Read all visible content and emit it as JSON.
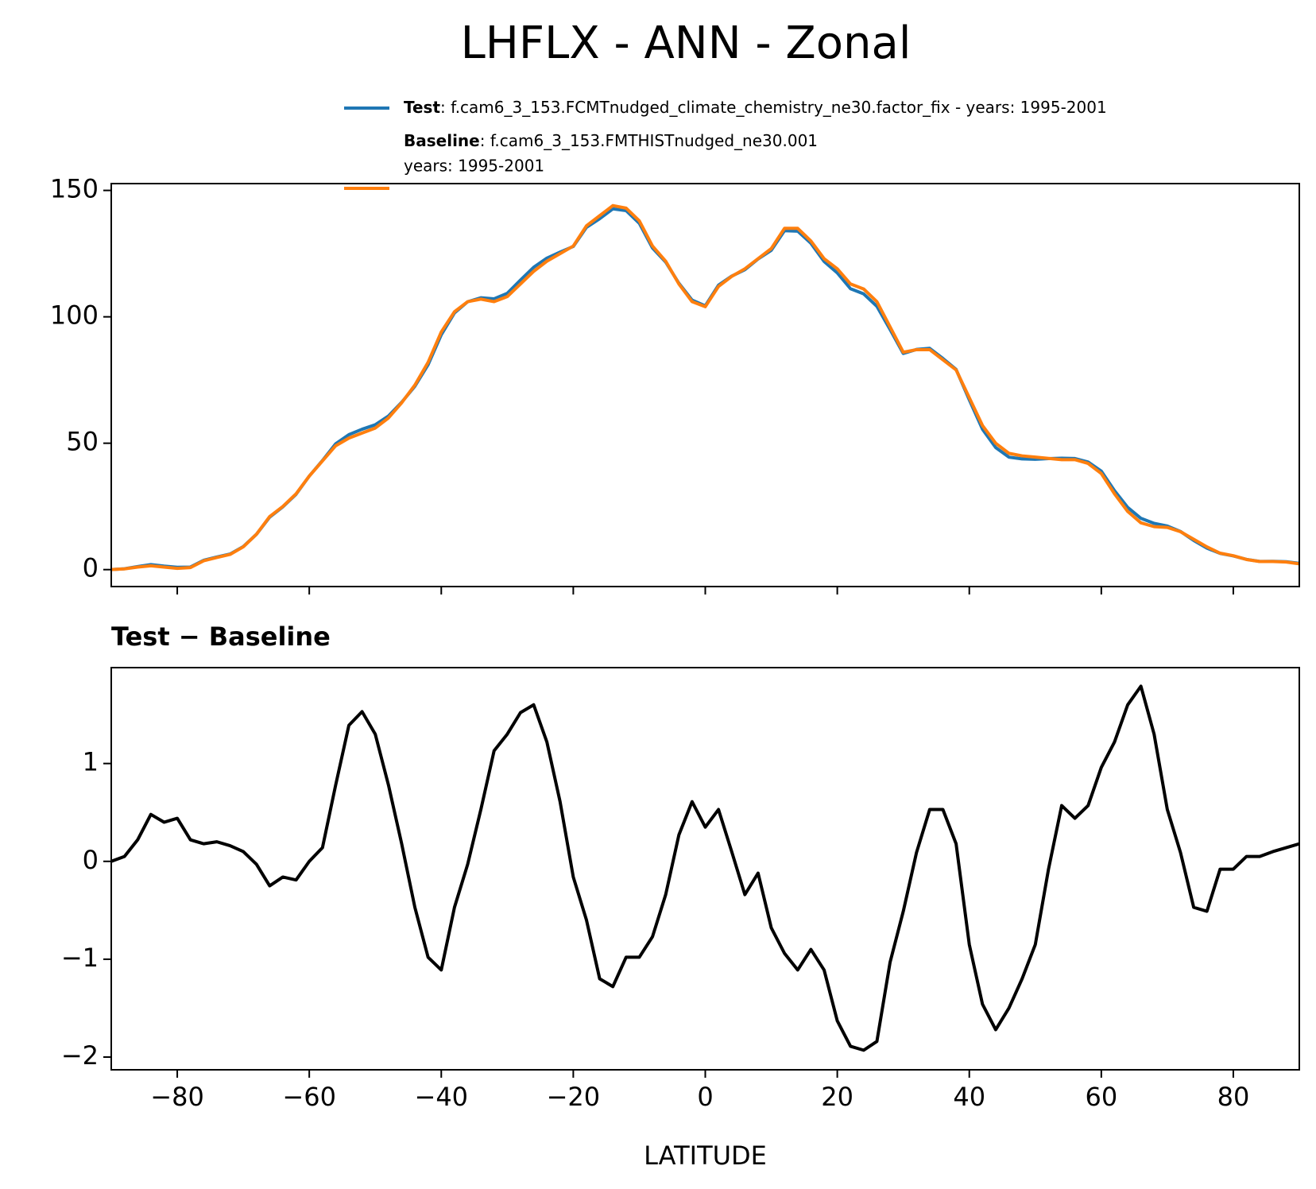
{
  "title": "LHFLX - ANN - Zonal",
  "chart_data": [
    {
      "type": "line",
      "x": [
        -90,
        -88,
        -86,
        -84,
        -82,
        -80,
        -78,
        -76,
        -74,
        -72,
        -70,
        -68,
        -66,
        -64,
        -62,
        -60,
        -58,
        -56,
        -54,
        -52,
        -50,
        -48,
        -46,
        -44,
        -42,
        -40,
        -38,
        -36,
        -34,
        -32,
        -30,
        -28,
        -26,
        -24,
        -22,
        -20,
        -18,
        -16,
        -14,
        -12,
        -10,
        -8,
        -6,
        -4,
        -2,
        0,
        2,
        4,
        6,
        8,
        10,
        12,
        14,
        16,
        18,
        20,
        22,
        24,
        26,
        28,
        30,
        32,
        34,
        36,
        38,
        40,
        42,
        44,
        46,
        48,
        50,
        52,
        54,
        56,
        58,
        60,
        62,
        64,
        66,
        68,
        70,
        72,
        74,
        76,
        78,
        80,
        82,
        84,
        86,
        88,
        90
      ],
      "xlim": [
        -90,
        90
      ],
      "ylim": [
        -6.7,
        152.7
      ],
      "yticks": [
        0,
        50,
        100,
        150
      ],
      "series": [
        {
          "name": "Test",
          "label_lines": [
            ": f.cam6_3_153.FCMTnudged_climate_chemistry_ne30.factor_fix - years: 1995-2001"
          ],
          "color": "#1f77b4",
          "values": [
            0,
            0.35,
            1.22,
            1.98,
            1.4,
            0.94,
            1.02,
            3.68,
            5.0,
            6.16,
            9.1,
            13.97,
            20.75,
            24.84,
            29.81,
            37,
            43.14,
            49.78,
            53.39,
            55.53,
            57.3,
            60.78,
            66.18,
            72.53,
            81.02,
            92.89,
            101.53,
            105.97,
            107.53,
            107.13,
            109.3,
            114.52,
            119.6,
            123.22,
            125.61,
            127.84,
            135.4,
            138.8,
            142.72,
            142.02,
            137.02,
            127.23,
            121.66,
            113.27,
            106.61,
            104.35,
            112.53,
            116.1,
            118.66,
            122.88,
            126.32,
            134.06,
            133.89,
            129.1,
            121.89,
            117.37,
            111.11,
            109.07,
            104.16,
            94.97,
            85.49,
            87.09,
            87.53,
            83.53,
            79.18,
            67.15,
            55.54,
            48.28,
            44.5,
            43.8,
            43.65,
            43.92,
            44.07,
            43.94,
            42.57,
            38.96,
            31.22,
            24.6,
            20.29,
            18.3,
            17.23,
            15.09,
            11.53,
            8.49,
            6.42,
            5.42,
            4.05,
            3.25,
            3.3,
            3.14,
            2.48
          ]
        },
        {
          "name": "Baseline",
          "label_lines": [
            ": f.cam6_3_153.FMTHISTnudged_ne30.001",
            "years: 1995-2001"
          ],
          "color": "#ff7f0e",
          "values": [
            0,
            0.3,
            1,
            1.5,
            1,
            0.5,
            0.8,
            3.5,
            4.8,
            6,
            9,
            14,
            21,
            25,
            30,
            37,
            43,
            49,
            52,
            54,
            56,
            60,
            66,
            73,
            82,
            94,
            102,
            106,
            107,
            106,
            108,
            113,
            118,
            122,
            125,
            128,
            136,
            140,
            144,
            143,
            138,
            128,
            122,
            113,
            106,
            104,
            112,
            116,
            119,
            123,
            127,
            135,
            135,
            130,
            123,
            119,
            113,
            111,
            106,
            96,
            86,
            87,
            87,
            83,
            79,
            68,
            57,
            50,
            46,
            45,
            44.5,
            44,
            43.5,
            43.5,
            42,
            38,
            30,
            23,
            18.5,
            17,
            16.7,
            15,
            12,
            9,
            6.5,
            5.5,
            4,
            3.2,
            3.2,
            3,
            2.3
          ]
        }
      ]
    },
    {
      "type": "line",
      "title": "Test − Baseline",
      "xlabel": "LATITUDE",
      "x": [
        -90,
        -88,
        -86,
        -84,
        -82,
        -80,
        -78,
        -76,
        -74,
        -72,
        -70,
        -68,
        -66,
        -64,
        -62,
        -60,
        -58,
        -56,
        -54,
        -52,
        -50,
        -48,
        -46,
        -44,
        -42,
        -40,
        -38,
        -36,
        -34,
        -32,
        -30,
        -28,
        -26,
        -24,
        -22,
        -20,
        -18,
        -16,
        -14,
        -12,
        -10,
        -8,
        -6,
        -4,
        -2,
        0,
        2,
        4,
        6,
        8,
        10,
        12,
        14,
        16,
        18,
        20,
        22,
        24,
        26,
        28,
        30,
        32,
        34,
        36,
        38,
        40,
        42,
        44,
        46,
        48,
        50,
        52,
        54,
        56,
        58,
        60,
        62,
        64,
        66,
        68,
        70,
        72,
        74,
        76,
        78,
        80,
        82,
        84,
        86,
        88,
        90
      ],
      "xlim": [
        -90,
        90
      ],
      "xticks": [
        {
          "value": -80,
          "label": "−80"
        },
        {
          "value": -60,
          "label": "−60"
        },
        {
          "value": -40,
          "label": "−40"
        },
        {
          "value": -20,
          "label": "−20"
        },
        0,
        20,
        40,
        60,
        80
      ],
      "ylim": [
        -2.13,
        1.98
      ],
      "yticks": [
        {
          "value": -2,
          "label": "−2"
        },
        {
          "value": -1,
          "label": "−1"
        },
        0,
        1
      ],
      "series": [
        {
          "color": "#000000",
          "values": [
            0,
            0.05,
            0.22,
            0.48,
            0.4,
            0.44,
            0.22,
            0.18,
            0.2,
            0.16,
            0.1,
            -0.03,
            -0.25,
            -0.16,
            -0.19,
            0,
            0.14,
            0.78,
            1.39,
            1.53,
            1.3,
            0.78,
            0.18,
            -0.47,
            -0.98,
            -1.11,
            -0.47,
            -0.03,
            0.53,
            1.13,
            1.3,
            1.52,
            1.6,
            1.22,
            0.61,
            -0.16,
            -0.6,
            -1.2,
            -1.28,
            -0.98,
            -0.98,
            -0.77,
            -0.34,
            0.27,
            0.61,
            0.35,
            0.53,
            0.1,
            -0.34,
            -0.12,
            -0.68,
            -0.94,
            -1.11,
            -0.9,
            -1.11,
            -1.63,
            -1.89,
            -1.93,
            -1.84,
            -1.03,
            -0.51,
            0.09,
            0.53,
            0.53,
            0.18,
            -0.85,
            -1.46,
            -1.72,
            -1.5,
            -1.2,
            -0.85,
            -0.08,
            0.57,
            0.44,
            0.57,
            0.96,
            1.22,
            1.6,
            1.79,
            1.3,
            0.53,
            0.09,
            -0.47,
            -0.51,
            -0.08,
            -0.08,
            0.05,
            0.05,
            0.1,
            0.14,
            0.18
          ]
        }
      ]
    }
  ]
}
